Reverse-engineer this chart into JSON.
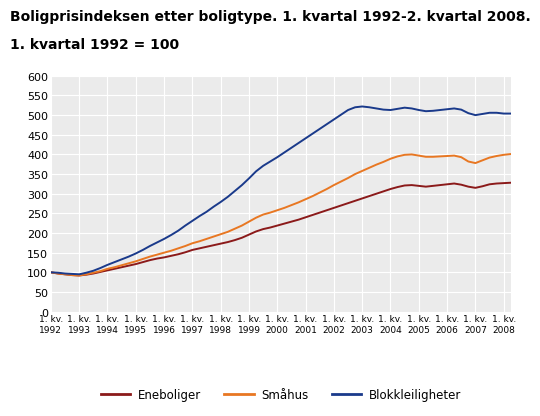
{
  "title": "Boligprisindeksen etter boligtype. 1. kvartal 1992-2. kvartal 2008.",
  "subtitle": "1. kvartal 1992 = 100",
  "title_fontsize": 10,
  "subtitle_fontsize": 10,
  "ylim": [
    0,
    600
  ],
  "yticks": [
    0,
    50,
    100,
    150,
    200,
    250,
    300,
    350,
    400,
    450,
    500,
    550,
    600
  ],
  "background_color": "#ffffff",
  "plot_bg": "#ebebeb",
  "series": {
    "Eneboliger": {
      "color": "#8b1a1a",
      "values": [
        100,
        97,
        95,
        93,
        92,
        94,
        97,
        101,
        105,
        109,
        113,
        117,
        121,
        126,
        131,
        135,
        138,
        142,
        146,
        151,
        157,
        161,
        165,
        169,
        173,
        177,
        182,
        188,
        196,
        204,
        210,
        214,
        219,
        224,
        229,
        234,
        240,
        246,
        252,
        258,
        264,
        270,
        276,
        282,
        288,
        294,
        300,
        306,
        312,
        317,
        321,
        322,
        320,
        318,
        320,
        322,
        324,
        326,
        323,
        318,
        315,
        319,
        324,
        326,
        327,
        328
      ]
    },
    "Småhus": {
      "color": "#e87722",
      "values": [
        100,
        97,
        95,
        93,
        92,
        95,
        99,
        103,
        109,
        113,
        118,
        123,
        128,
        134,
        140,
        145,
        150,
        155,
        161,
        167,
        174,
        179,
        185,
        191,
        197,
        203,
        211,
        219,
        229,
        239,
        247,
        252,
        258,
        264,
        271,
        278,
        286,
        294,
        303,
        312,
        322,
        331,
        340,
        350,
        358,
        366,
        374,
        381,
        389,
        395,
        399,
        400,
        397,
        394,
        394,
        395,
        396,
        397,
        393,
        382,
        378,
        385,
        392,
        396,
        399,
        401
      ]
    },
    "Blokkleiligheter": {
      "color": "#1a3a8b",
      "values": [
        100,
        99,
        97,
        96,
        95,
        99,
        104,
        111,
        119,
        126,
        133,
        140,
        148,
        157,
        167,
        176,
        185,
        195,
        206,
        219,
        231,
        243,
        254,
        267,
        279,
        292,
        307,
        322,
        339,
        357,
        371,
        382,
        393,
        405,
        417,
        429,
        441,
        453,
        465,
        477,
        489,
        501,
        513,
        520,
        522,
        520,
        517,
        514,
        513,
        516,
        519,
        517,
        513,
        510,
        511,
        513,
        515,
        517,
        514,
        505,
        500,
        503,
        506,
        506,
        504,
        504
      ]
    }
  },
  "x_labels": [
    "1. kv.\n1992",
    "1. kv.\n1993",
    "1. kv.\n1994",
    "1. kv.\n1995",
    "1. kv.\n1996",
    "1. kv.\n1997",
    "1. kv.\n1998",
    "1. kv.\n1999",
    "1. kv.\n2000",
    "1. kv.\n2001",
    "1. kv.\n2002",
    "1. kv.\n2003",
    "1. kv.\n2004",
    "1. kv.\n2005",
    "1. kv.\n2006",
    "1. kv.\n2007",
    "1. kv.\n2008"
  ],
  "legend_labels": [
    "Eneboliger",
    "Småhus",
    "Blokkleiligheter"
  ],
  "legend_colors": [
    "#8b1a1a",
    "#e87722",
    "#1a3a8b"
  ]
}
